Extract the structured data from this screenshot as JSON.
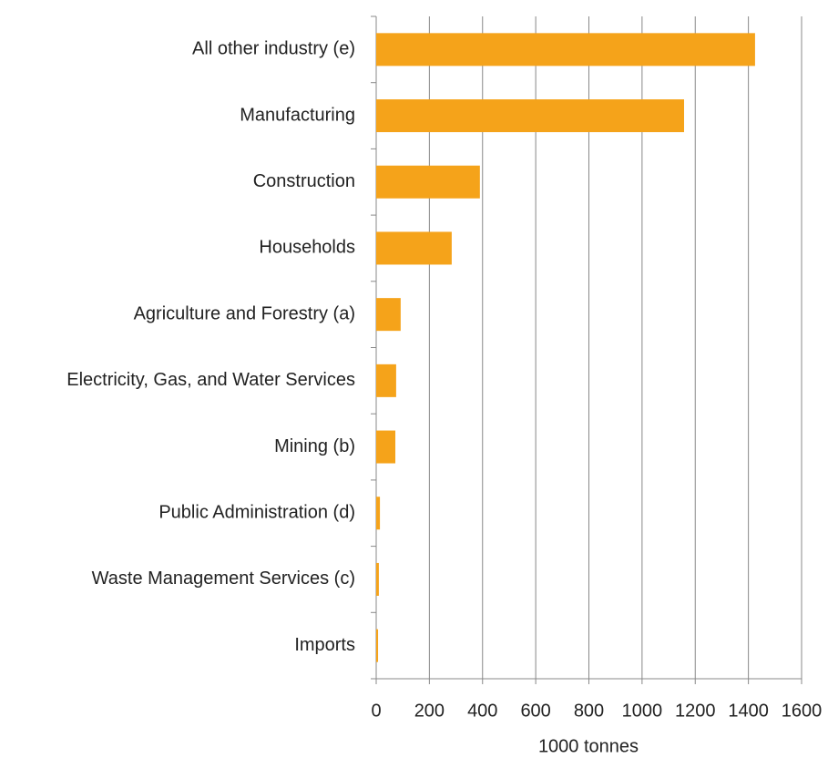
{
  "chart_data": {
    "type": "hbar",
    "categories": [
      "All other industry (e)",
      "Manufacturing",
      "Construction",
      "Households",
      "Agriculture and Forestry (a)",
      "Electricity, Gas, and Water Services",
      "Mining (b)",
      "Public Administration (d)",
      "Waste Management Services (c)",
      "Imports"
    ],
    "values": [
      1425,
      1158,
      390,
      284,
      92,
      75,
      72,
      14,
      10,
      7
    ],
    "color": "#f5a31a",
    "xlabel": "1000 tonnes",
    "xlim": [
      0,
      1600
    ],
    "xticks": [
      0,
      200,
      400,
      600,
      800,
      1000,
      1200,
      1400,
      1600
    ],
    "grid": true
  }
}
